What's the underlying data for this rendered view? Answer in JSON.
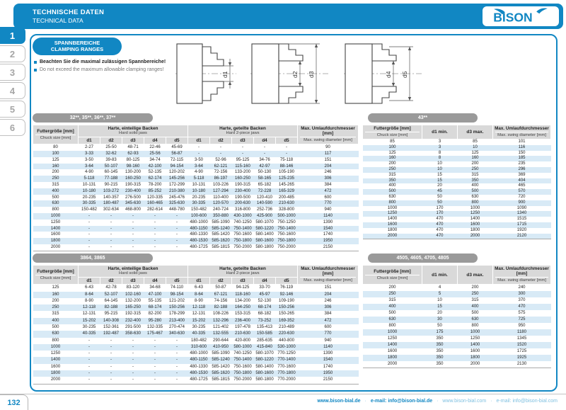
{
  "header": {
    "title_de": "TECHNISCHE DATEN",
    "title_en": "TECHNICAL DATA",
    "brand": "BISON"
  },
  "sidebar": {
    "tabs": [
      "1",
      "2",
      "3",
      "4",
      "5",
      "6"
    ],
    "active": "1"
  },
  "intro": {
    "label_de": "SPANNBEREICHE",
    "label_en": "CLAMPING RANGES",
    "note_de": "Beachten Sie die maximal zulässigen Spannbereiche!",
    "note_en": "Do not exceed the maximum allowable clamping ranges!",
    "dims": [
      "d1",
      "d2",
      "d3",
      "d4",
      "d5"
    ]
  },
  "colors": {
    "accent": "#1187c3",
    "pill_gray": "#9a9a9a",
    "row_alt": "#d8eaf6",
    "header_gray": "#d9d9d9"
  },
  "tables": {
    "wide_header": {
      "size_de": "Futtergröße [mm]",
      "size_en": "Chuck size [mm]",
      "solid_de": "Harte, einteilige Backen",
      "solid_en": "Hard solid jaws",
      "split_de": "Harte, geteilte Backen",
      "split_en": "Hard 2-piece jaws",
      "swing_de": "Max. Umlaufdurchmesser [mm]",
      "swing_en": "Max. swing diameter [mm]",
      "dims": [
        "d1",
        "d2",
        "d3",
        "d4",
        "d5"
      ]
    },
    "table1": {
      "title": "32**, 35**, 36**, 37**",
      "rows": [
        [
          "80",
          "2-27",
          "25-50",
          "48-71",
          "22-46",
          "45-69",
          "-",
          "-",
          "-",
          "-",
          "-",
          "90"
        ],
        [
          "100",
          "3-33",
          "32-62",
          "62-93",
          "25-56",
          "56-87",
          "-",
          "-",
          "-",
          "-",
          "-",
          "117"
        ],
        [
          "125",
          "3-50",
          "39-83",
          "80-125",
          "34-74",
          "72-115",
          "3-50",
          "52-96",
          "95-125",
          "34-76",
          "75-118",
          "151"
        ],
        [
          "160",
          "3-64",
          "50-107",
          "98-160",
          "42-100",
          "94-154",
          "3-64",
          "62-121",
          "115-160",
          "42-97",
          "88-146",
          "204"
        ],
        [
          "200",
          "4-90",
          "60-145",
          "130-200",
          "52-135",
          "120-202",
          "4-90",
          "72-156",
          "133-200",
          "50-130",
          "105-190",
          "246"
        ],
        [
          "250",
          "5-118",
          "77-188",
          "160-250",
          "62-174",
          "145-256",
          "5-118",
          "86-197",
          "160-250",
          "58-165",
          "125-235",
          "306"
        ],
        [
          "315",
          "10-131",
          "90-215",
          "190-315",
          "78-200",
          "172-299",
          "10-131",
          "103-226",
          "190-315",
          "65-182",
          "145-265",
          "384"
        ],
        [
          "400",
          "10-180",
          "103-272",
          "230-400",
          "85-252",
          "210-380",
          "10-180",
          "127-294",
          "230-400",
          "72-228",
          "165-329",
          "472"
        ],
        [
          "500",
          "20-235",
          "140-357",
          "276-500",
          "120-335",
          "245-476",
          "20-235",
          "110-400",
          "190-500",
          "120-410",
          "200-485",
          "600"
        ],
        [
          "630",
          "30-335",
          "180-487",
          "345-630",
          "160-465",
          "325-630",
          "30-335",
          "120-570",
          "200-630",
          "140-590",
          "210-630",
          "770"
        ],
        [
          "800",
          "150-482",
          "302-634",
          "468-800",
          "282-614",
          "448-780",
          "150-482",
          "240-724",
          "316-800",
          "252-736",
          "328-800",
          "940"
        ],
        [
          "1000",
          "-",
          "-",
          "-",
          "-",
          "-",
          "100-600",
          "350-880",
          "430-1000",
          "425-900",
          "500-1000",
          "1140"
        ],
        [
          "1250",
          "-",
          "-",
          "-",
          "-",
          "-",
          "480-1000",
          "585-1090",
          "740-1250",
          "580-1070",
          "750-1250",
          "1390"
        ],
        [
          "1400",
          "-",
          "-",
          "-",
          "-",
          "-",
          "480-1150",
          "585-1240",
          "750-1400",
          "580-1220",
          "750-1400",
          "1540"
        ],
        [
          "1600",
          "-",
          "-",
          "-",
          "-",
          "-",
          "480-1330",
          "585-1420",
          "750-1600",
          "580-1400",
          "750-1600",
          "1740"
        ],
        [
          "1800",
          "-",
          "-",
          "-",
          "-",
          "-",
          "480-1530",
          "585-1620",
          "750-1800",
          "580-1600",
          "750-1800",
          "1950"
        ],
        [
          "2000",
          "-",
          "-",
          "-",
          "-",
          "-",
          "480-1725",
          "585-1815",
          "750-2000",
          "580-1800",
          "750-2000",
          "2150"
        ]
      ]
    },
    "table2": {
      "title": "43**",
      "header": {
        "size_de": "Futtergröße [mm]",
        "size_en": "Chuck size [mm]",
        "d1_label": "d1 min.",
        "d3_label": "d3 max.",
        "swing_de": "Max. Umlaufdurchmesser",
        "swing_en": "Max. swing diameter [mm]"
      },
      "rows": [
        [
          "85",
          "3",
          "85",
          "101"
        ],
        [
          "100",
          "3",
          "10",
          "116"
        ],
        [
          "125",
          "8",
          "125",
          "150"
        ],
        [
          "160",
          "8",
          "160",
          "185"
        ],
        [
          "200",
          "10",
          "200",
          "235"
        ],
        [
          "250",
          "10",
          "250",
          "296"
        ],
        [
          "315",
          "15",
          "315",
          "369"
        ],
        [
          "350",
          "15",
          "350",
          "404"
        ],
        [
          "400",
          "20",
          "400",
          "465"
        ],
        [
          "500",
          "45",
          "500",
          "570"
        ],
        [
          "630",
          "50",
          "630",
          "720"
        ],
        [
          "800",
          "50",
          "800",
          "900"
        ],
        [
          "1000",
          "170",
          "1000",
          "1090"
        ],
        [
          "1250",
          "170",
          "1250",
          "1340"
        ],
        [
          "1400",
          "470",
          "1400",
          "1515"
        ],
        [
          "1600",
          "470",
          "1600",
          "1715"
        ],
        [
          "1800",
          "470",
          "1800",
          "1920"
        ],
        [
          "2000",
          "470",
          "2000",
          "2120"
        ]
      ]
    },
    "table3": {
      "title": "3864, 3865",
      "rows": [
        [
          "125",
          "6-43",
          "42-78",
          "83-120",
          "34-68",
          "74-110",
          "6-43",
          "50-87",
          "94-125",
          "33-70",
          "76-119",
          "151"
        ],
        [
          "160",
          "8-64",
          "52-107",
          "102-160",
          "47-100",
          "98-154",
          "8-64",
          "67-121",
          "118-160",
          "45-97",
          "92-146",
          "204"
        ],
        [
          "200",
          "8-90",
          "64-145",
          "132-200",
          "55-135",
          "121-202",
          "8-90",
          "74-156",
          "134-200",
          "52-130",
          "109-190",
          "246"
        ],
        [
          "250",
          "12-118",
          "82-188",
          "165-250",
          "68-174",
          "150-256",
          "12-118",
          "82-188",
          "164-250",
          "68-174",
          "150-256",
          "306"
        ],
        [
          "315",
          "12-131",
          "95-215",
          "192-315",
          "82-200",
          "178-299",
          "12-131",
          "108-226",
          "153-315",
          "68-182",
          "150-265",
          "384"
        ],
        [
          "400",
          "15-202",
          "140-308",
          "232-400",
          "95-280",
          "213-400",
          "15-202",
          "132-296",
          "236-400",
          "73-252",
          "169-352",
          "472"
        ],
        [
          "500",
          "30-235",
          "152-361",
          "291-500",
          "132-335",
          "270-474",
          "30-235",
          "121-402",
          "197-478",
          "135-413",
          "210-489",
          "600"
        ],
        [
          "630",
          "40-335",
          "192-487",
          "358-630",
          "175-467",
          "340-630",
          "40-335",
          "132-555",
          "210-630",
          "150-585",
          "220-630",
          "770"
        ],
        [
          "800",
          "-",
          "-",
          "-",
          "-",
          "-",
          "180-482",
          "290-644",
          "420-800",
          "285-635",
          "440-800",
          "940"
        ],
        [
          "1000",
          "-",
          "-",
          "-",
          "-",
          "-",
          "310-600",
          "410-950",
          "580-1000",
          "415-840",
          "530-1000",
          "1140"
        ],
        [
          "1250",
          "-",
          "-",
          "-",
          "-",
          "-",
          "480-1000",
          "585-1090",
          "740-1250",
          "580-1070",
          "770-1250",
          "1390"
        ],
        [
          "1400",
          "-",
          "-",
          "-",
          "-",
          "-",
          "480-1150",
          "585-1240",
          "750-1400",
          "580-1220",
          "770-1400",
          "1540"
        ],
        [
          "1600",
          "-",
          "-",
          "-",
          "-",
          "-",
          "480-1330",
          "585-1420",
          "750-1600",
          "580-1400",
          "770-1600",
          "1740"
        ],
        [
          "1800",
          "-",
          "-",
          "-",
          "-",
          "-",
          "480-1530",
          "585-1620",
          "750-1800",
          "580-1600",
          "770-1800",
          "1950"
        ],
        [
          "2000",
          "-",
          "-",
          "-",
          "-",
          "-",
          "480-1725",
          "585-1815",
          "750-2000",
          "580-1800",
          "770-2000",
          "2150"
        ]
      ]
    },
    "table4": {
      "title": "4505, 4605, 4705, 4805",
      "header": {
        "size_de": "Futtergröße [mm]",
        "size_en": "Chuck size [mm]",
        "d1_label": "d1 min.",
        "d3_label": "d3 max.",
        "swing_de": "Max. Umlaufdurchmesser [mm]",
        "swing_en": "Max. swing diameter [mm]"
      },
      "rows": [
        [
          "200",
          "4",
          "200",
          "240"
        ],
        [
          "250",
          "5",
          "250",
          "300"
        ],
        [
          "315",
          "10",
          "315",
          "370"
        ],
        [
          "400",
          "15",
          "400",
          "470"
        ],
        [
          "500",
          "20",
          "500",
          "575"
        ],
        [
          "630",
          "30",
          "630",
          "725"
        ],
        [
          "800",
          "50",
          "800",
          "950"
        ],
        [
          "1000",
          "175",
          "1000",
          "1180"
        ],
        [
          "1250",
          "350",
          "1250",
          "1345"
        ],
        [
          "1400",
          "350",
          "1400",
          "1520"
        ],
        [
          "1600",
          "350",
          "1600",
          "1725"
        ],
        [
          "1800",
          "350",
          "1800",
          "1925"
        ],
        [
          "2000",
          "350",
          "2000",
          "2130"
        ]
      ]
    }
  },
  "footer": {
    "page": "132",
    "sep": "·",
    "items": [
      {
        "label": "www.bison-bial.de"
      },
      {
        "label": "e-mail: info@bison-bial.de"
      },
      {
        "label": "www.bison-bial.com"
      },
      {
        "label": "e-mail: info@bison-bial.com"
      }
    ]
  }
}
